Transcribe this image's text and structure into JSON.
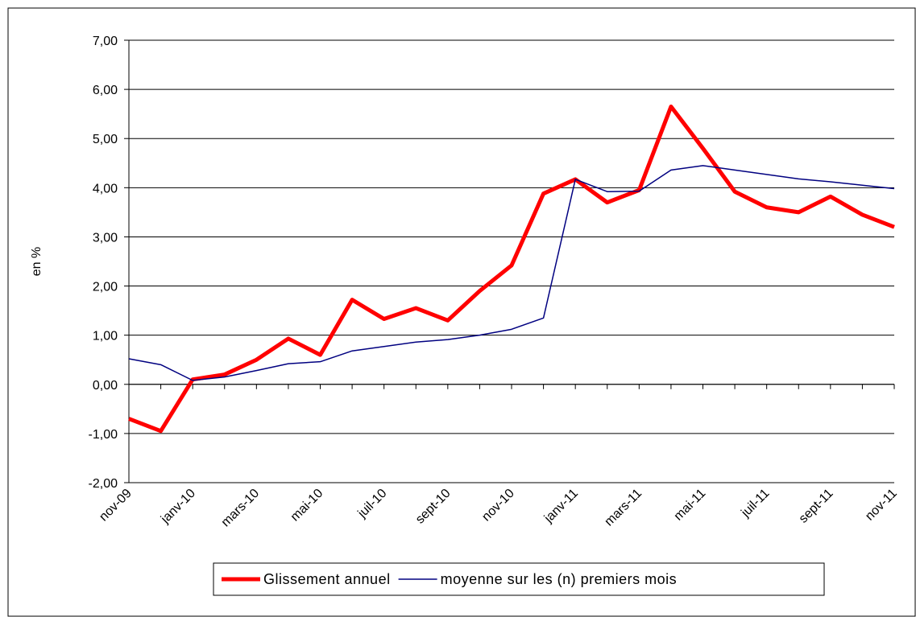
{
  "chart_data": {
    "type": "line",
    "y_label": "en %",
    "categories": [
      "nov-09",
      null,
      "janv-10",
      null,
      "mars-10",
      null,
      "mai-10",
      null,
      "juil-10",
      null,
      "sept-10",
      null,
      "nov-10",
      null,
      "janv-11",
      null,
      "mars-11",
      null,
      "mai-11",
      null,
      "juil-11",
      null,
      "sept-11",
      null,
      "nov-11"
    ],
    "series": [
      {
        "name": "Glissement annuel",
        "color": "#ff0000",
        "values": [
          -0.7,
          -0.95,
          0.1,
          0.2,
          0.5,
          0.93,
          0.6,
          1.72,
          1.33,
          1.55,
          1.3,
          1.9,
          2.42,
          3.88,
          4.17,
          3.7,
          3.95,
          5.65,
          4.8,
          3.92,
          3.6,
          3.5,
          3.82,
          3.45,
          3.2
        ]
      },
      {
        "name": "moyenne sur les (n) premiers mois",
        "color": "#000080",
        "values": [
          0.52,
          0.4,
          0.08,
          0.15,
          0.28,
          0.42,
          0.46,
          0.68,
          0.77,
          0.86,
          0.91,
          1.0,
          1.12,
          1.35,
          4.17,
          3.92,
          3.93,
          4.36,
          4.45,
          4.36,
          4.27,
          4.18,
          4.12,
          4.05,
          3.98
        ]
      }
    ],
    "ylim": [
      -2,
      7
    ],
    "yticks": [
      {
        "value": -2,
        "label": "-2,00"
      },
      {
        "value": -1,
        "label": "-1,00"
      },
      {
        "value": 0,
        "label": "0,00"
      },
      {
        "value": 1,
        "label": "1,00"
      },
      {
        "value": 2,
        "label": "2,00"
      },
      {
        "value": 3,
        "label": "3,00"
      },
      {
        "value": 4,
        "label": "4,00"
      },
      {
        "value": 5,
        "label": "5,00"
      },
      {
        "value": 6,
        "label": "6,00"
      },
      {
        "value": 7,
        "label": "7,00"
      }
    ],
    "grid": true,
    "legend": "bottom"
  }
}
